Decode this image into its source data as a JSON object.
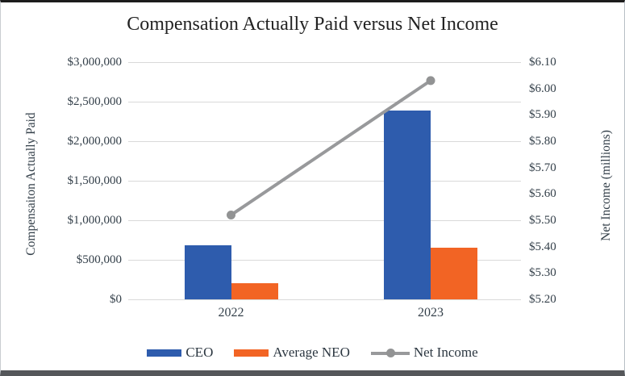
{
  "frame": {
    "border_top_color": "#1c1c1c",
    "border_bottom_color": "#55575a"
  },
  "chart_data": {
    "type": "bar",
    "subtype": "grouped-bar-with-line-combo",
    "title": "Compensation Actually Paid versus Net Income",
    "categories": [
      "2022",
      "2023"
    ],
    "series": [
      {
        "name": "CEO",
        "kind": "bar",
        "axis": "left",
        "color": "#2E5CAD",
        "values": [
          680000,
          2390000
        ]
      },
      {
        "name": "Average NEO",
        "kind": "bar",
        "axis": "left",
        "color": "#F26424",
        "values": [
          205000,
          650000
        ]
      },
      {
        "name": "Net Income",
        "kind": "line",
        "axis": "right",
        "color": "#98999b",
        "marker_color": "#929394",
        "values": [
          5.52,
          6.03
        ]
      }
    ],
    "left_axis": {
      "label": "Compensaiton Actually Paid",
      "min": 0,
      "max": 3000000,
      "step": 500000,
      "ticks": [
        "$3,000,000",
        "$2,500,000",
        "$2,000,000",
        "$1,500,000",
        "$1,000,000",
        "$500,000",
        "$0"
      ]
    },
    "right_axis": {
      "label": "Net Income (millions)",
      "min": 5.2,
      "max": 6.1,
      "step": 0.1,
      "ticks": [
        "$6.10",
        "$6.00",
        "$5.90",
        "$5.80",
        "$5.70",
        "$5.60",
        "$5.50",
        "$5.40",
        "$5.30",
        "$5.20"
      ]
    },
    "grid": true,
    "gridline_color": "#d9d9d9",
    "legend_position": "bottom",
    "legend": [
      "CEO",
      "Average NEO",
      "Net Income"
    ]
  }
}
